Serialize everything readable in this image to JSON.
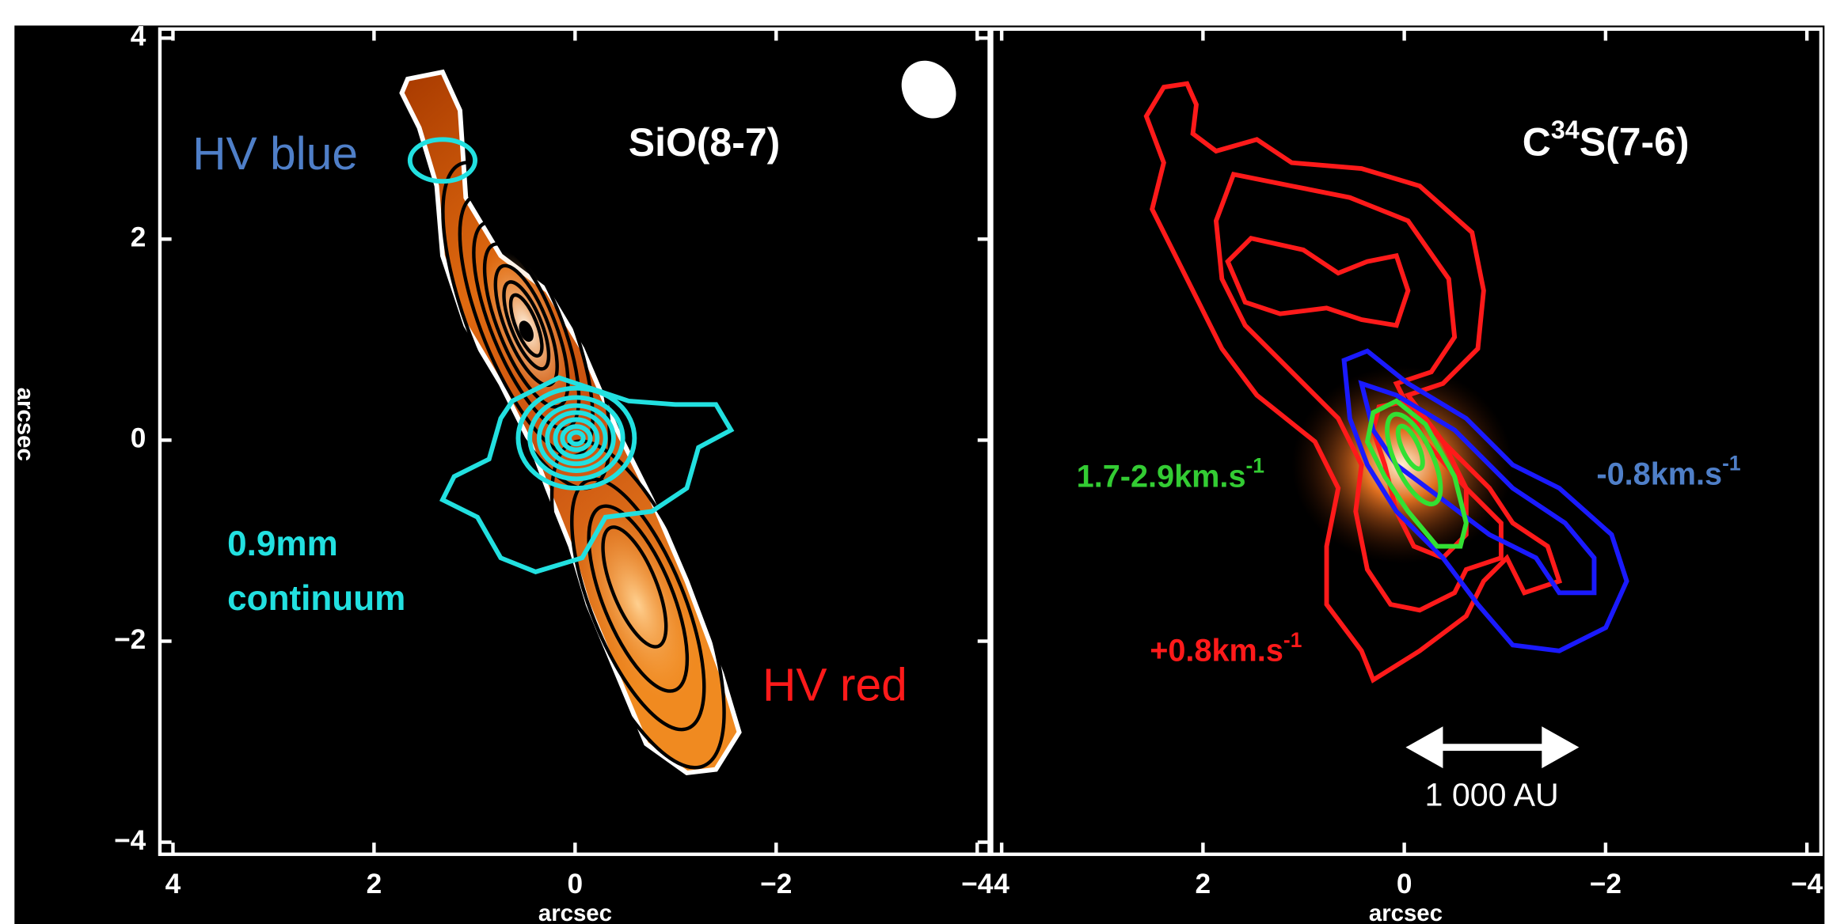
{
  "chart_data": [
    {
      "type": "contour",
      "title": "SiO(8-7)",
      "xlabel": "arcsec",
      "ylabel": "arcsec",
      "xlim": [
        4.13,
        -4.12
      ],
      "ylim": [
        -4.12,
        4.09
      ],
      "xticks": [
        4,
        2,
        0,
        {
          "value": -2,
          "label": "−2"
        },
        {
          "value": -4,
          "label": "−4"
        }
      ],
      "yticks": [
        {
          "value": -4,
          "label": "−4"
        },
        {
          "value": -2,
          "label": "−2"
        },
        0,
        2,
        4
      ],
      "annotations": {
        "hv_blue": "HV blue",
        "continuum": [
          "0.9mm",
          "continuum"
        ],
        "hv_red": "HV red"
      }
    },
    {
      "type": "contour",
      "title": {
        "base": "C",
        "sup": "34",
        "rest": "S(7-6)"
      },
      "xlabel": "arcsec",
      "xlim": [
        4.1,
        -4.14
      ],
      "ylim": [
        -4.12,
        4.09
      ],
      "xticks": [
        4,
        2,
        0,
        {
          "value": -2,
          "label": "−2"
        },
        {
          "value": -4,
          "label": "−4"
        }
      ],
      "annotations": {
        "green": {
          "text": "1.7-2.9km.s",
          "sup": "-1"
        },
        "blue": {
          "text": "-0.8km.s",
          "sup": "-1"
        },
        "red": {
          "text": "+0.8km.s",
          "sup": "-1"
        },
        "scale": "1 000 AU"
      }
    }
  ]
}
